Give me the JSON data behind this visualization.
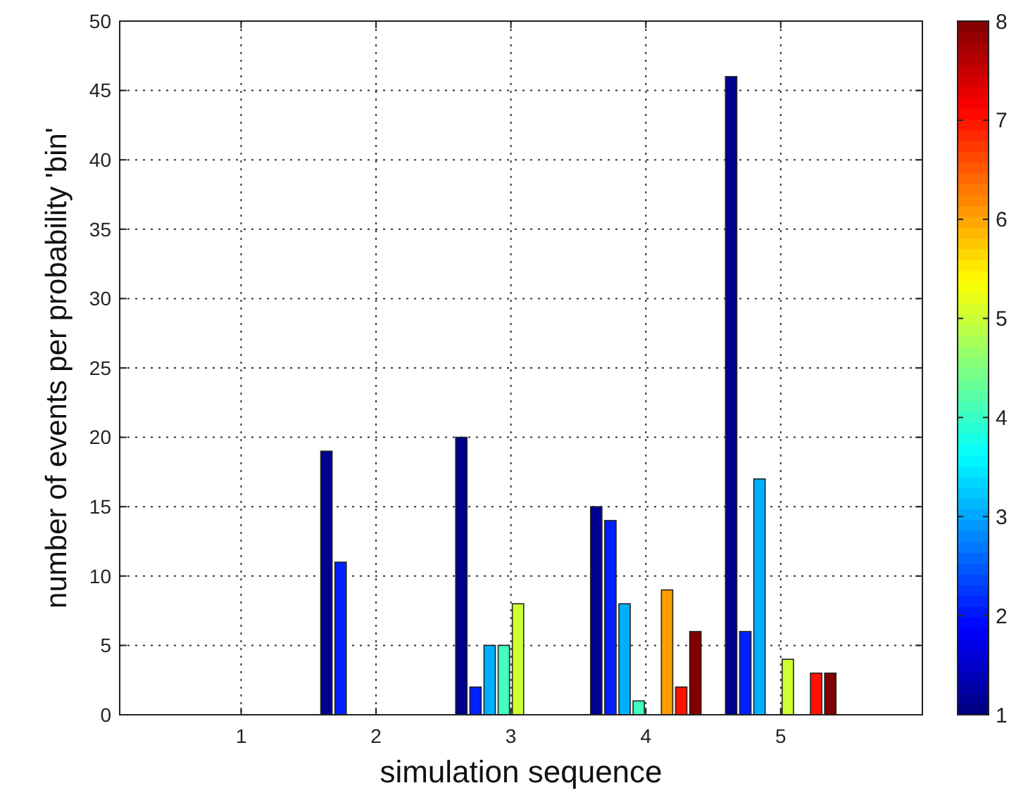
{
  "chart_data": {
    "type": "bar",
    "xlabel": "simulation sequence",
    "ylabel": "number of events per probability 'bin'",
    "categories": [
      "1",
      "2",
      "3",
      "4",
      "5"
    ],
    "series": [
      {
        "color": "#00008f",
        "values": [
          0,
          19,
          20,
          15,
          46
        ]
      },
      {
        "color": "#0020ff",
        "values": [
          0,
          11,
          2,
          14,
          6
        ]
      },
      {
        "color": "#00afff",
        "values": [
          0,
          0,
          5,
          8,
          17
        ]
      },
      {
        "color": "#40ffbf",
        "values": [
          0,
          0,
          5,
          1,
          0
        ]
      },
      {
        "color": "#cfff30",
        "values": [
          0,
          0,
          8,
          0,
          4
        ]
      },
      {
        "color": "#ff9f00",
        "values": [
          0,
          0,
          0,
          9,
          0
        ]
      },
      {
        "color": "#ff1000",
        "values": [
          0,
          0,
          0,
          2,
          3
        ]
      },
      {
        "color": "#800000",
        "values": [
          0,
          0,
          0,
          6,
          3
        ]
      }
    ],
    "ylim": [
      0,
      50
    ],
    "yticks": [
      0,
      5,
      10,
      15,
      20,
      25,
      30,
      35,
      40,
      45,
      50
    ],
    "grid": true,
    "clim": [
      1,
      8
    ],
    "cticks": [
      1,
      2,
      3,
      4,
      5,
      6,
      7,
      8
    ]
  }
}
